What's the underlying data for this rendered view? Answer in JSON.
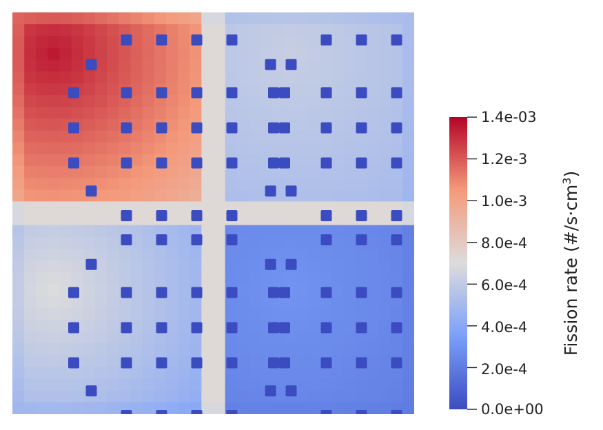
{
  "chart_data": {
    "type": "heatmap",
    "title": "",
    "colorbar": {
      "title": "Fission rate (#/s·cm",
      "title_sup": "3",
      "title_close": ")",
      "min": 0.0,
      "max": 0.0014,
      "colors": [
        "#3b4cc0",
        "#7b9ff9",
        "#dddcdc",
        "#f49a7b",
        "#b40426"
      ],
      "ticks": [
        {
          "value": 0.0014,
          "label": "1.4e-03"
        },
        {
          "value": 0.0012,
          "label": "1.2e-3"
        },
        {
          "value": 0.001,
          "label": "1.0e-3"
        },
        {
          "value": 0.0008,
          "label": "8.0e-4"
        },
        {
          "value": 0.0006,
          "label": "6.0e-4"
        },
        {
          "value": 0.0004,
          "label": "4.0e-4"
        },
        {
          "value": 0.0002,
          "label": "2.0e-4"
        },
        {
          "value": 0.0,
          "label": "0.0e+00"
        }
      ]
    },
    "assemblies": [
      {
        "name": "top-left",
        "peak_rate": 0.00135,
        "edge_rate": 0.00095
      },
      {
        "name": "top-right",
        "peak_rate": 0.00062,
        "edge_rate": 0.0005
      },
      {
        "name": "bottom-left",
        "peak_rate": 0.0007,
        "edge_rate": 0.0004
      },
      {
        "name": "bottom-right",
        "peak_rate": 0.0003,
        "edge_rate": 0.0002
      }
    ],
    "guide_tube_rate": 0.0
  }
}
